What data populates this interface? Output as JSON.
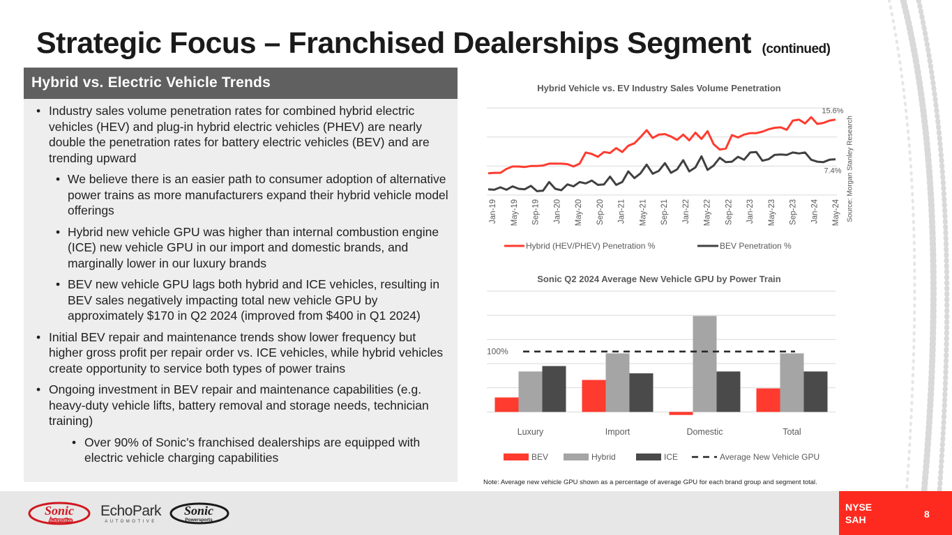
{
  "title": {
    "main": "Strategic Focus – Franchised Dealerships Segment",
    "continued": "(continued)"
  },
  "panel": {
    "header": "Hybrid vs. Electric Vehicle Trends",
    "bullets": [
      {
        "level": 1,
        "text": "Industry sales volume penetration rates for combined hybrid electric vehicles (HEV) and plug-in hybrid electric vehicles (PHEV) are nearly double the penetration rates for battery electric vehicles (BEV) and are trending upward"
      },
      {
        "level": 2,
        "text": "We believe there is an easier path to consumer adoption of alternative power trains as more manufacturers expand their hybrid vehicle model offerings"
      },
      {
        "level": 2,
        "text": "Hybrid new vehicle GPU was higher than internal combustion engine (ICE) new vehicle GPU in our import and domestic brands, and marginally lower in our luxury brands"
      },
      {
        "level": 2,
        "text": "BEV new vehicle GPU lags both hybrid and ICE vehicles, resulting in BEV sales negatively impacting total new vehicle GPU by approximately $170 in Q2 2024 (improved from $400 in Q1 2024)"
      },
      {
        "level": 1,
        "text": "Initial BEV repair and maintenance trends show lower frequency but higher gross profit per repair order vs. ICE vehicles, while hybrid vehicles create opportunity to service both types of power trains"
      },
      {
        "level": 1,
        "text": "Ongoing investment in BEV repair and maintenance capabilities (e.g. heavy-duty vehicle lifts, battery removal and storage needs, technician training)"
      },
      {
        "level": 3,
        "text": "Over 90% of Sonic’s franchised dealerships are equipped with electric vehicle charging capabilities"
      }
    ]
  },
  "chart_data": [
    {
      "type": "line",
      "title": "Hybrid Vehicle vs. EV Industry Sales Volume Penetration",
      "x_tick_labels": [
        "Jan-19",
        "May-19",
        "Sep-19",
        "Jan-20",
        "May-20",
        "Sep-20",
        "Jan-21",
        "May-21",
        "Sep-21",
        "Jan-22",
        "May-22",
        "Sep-22",
        "Jan-23",
        "May-23",
        "Sep-23",
        "Jan-24",
        "May-24"
      ],
      "ylim": [
        0,
        18
      ],
      "grid": true,
      "legend": "bottom",
      "series": [
        {
          "name": "Hybrid (HEV/PHEV) Penetration %",
          "color": "#ff3b2f",
          "end_label": "15.6%",
          "values": [
            4.5,
            4.6,
            4.6,
            5.4,
            5.9,
            5.9,
            5.8,
            6.0,
            6.0,
            6.1,
            6.5,
            6.5,
            6.5,
            6.4,
            5.9,
            6.5,
            8.8,
            8.5,
            7.9,
            8.9,
            8.7,
            9.7,
            8.9,
            10.2,
            10.7,
            12.0,
            13.4,
            11.8,
            12.5,
            12.6,
            12.1,
            11.4,
            12.5,
            11.3,
            12.9,
            11.6,
            13.2,
            10.5,
            9.4,
            9.6,
            12.4,
            11.9,
            12.5,
            12.8,
            12.8,
            13.1,
            13.6,
            13.9,
            14.0,
            13.5,
            15.4,
            15.6,
            14.8,
            16.1,
            14.7,
            14.9,
            15.4,
            15.6
          ]
        },
        {
          "name": "BEV Penetration %",
          "color": "#404040",
          "end_label": "7.4%",
          "values": [
            1.2,
            1.1,
            1.6,
            1.1,
            1.8,
            1.3,
            1.2,
            1.9,
            0.8,
            0.9,
            2.7,
            1.3,
            1.0,
            2.2,
            1.8,
            2.7,
            2.4,
            3.0,
            2.1,
            2.2,
            3.8,
            2.1,
            2.7,
            4.9,
            3.5,
            4.5,
            6.3,
            4.4,
            5.0,
            6.6,
            4.6,
            5.3,
            7.2,
            4.9,
            5.7,
            8.0,
            5.2,
            6.1,
            7.7,
            6.8,
            6.9,
            7.9,
            7.3,
            8.8,
            8.9,
            7.1,
            7.4,
            8.3,
            8.4,
            8.3,
            8.8,
            8.6,
            8.8,
            7.3,
            6.9,
            6.8,
            7.3,
            7.4
          ]
        }
      ],
      "source": "Source: Morgan Stanley Research"
    },
    {
      "type": "bar",
      "title": "Sonic Q2 2024 Average New Vehicle GPU by Power Train",
      "categories": [
        "Luxury",
        "Import",
        "Domestic",
        "Total"
      ],
      "ylim": [
        -10,
        200
      ],
      "series": [
        {
          "name": "BEV",
          "color": "#ff3b2f",
          "values": [
            24,
            53,
            -5,
            39
          ]
        },
        {
          "name": "Hybrid",
          "color": "#a5a5a5",
          "values": [
            67,
            97,
            159,
            97
          ]
        },
        {
          "name": "ICE",
          "color": "#4a4a4a",
          "values": [
            76,
            64,
            67,
            67
          ]
        }
      ],
      "reference_line": {
        "name": "Average New Vehicle GPU",
        "value": 100,
        "label": "100%",
        "color": "#222222"
      },
      "legend": "bottom",
      "note": "Note: Average new vehicle GPU shown as a percentage of average GPU for each brand group and segment total."
    }
  ],
  "footer": {
    "logo_sonic": "Sonic",
    "logo_sonic_sub": "Automotive",
    "logo_echopark": "EchoPark",
    "logo_echopark_sub": "AUTOMOTIVE",
    "logo_powersports": "Sonic",
    "logo_powersports_sub": "Powersports",
    "exchange_line1": "NYSE",
    "exchange_line2": "SAH",
    "page_number": "8"
  }
}
